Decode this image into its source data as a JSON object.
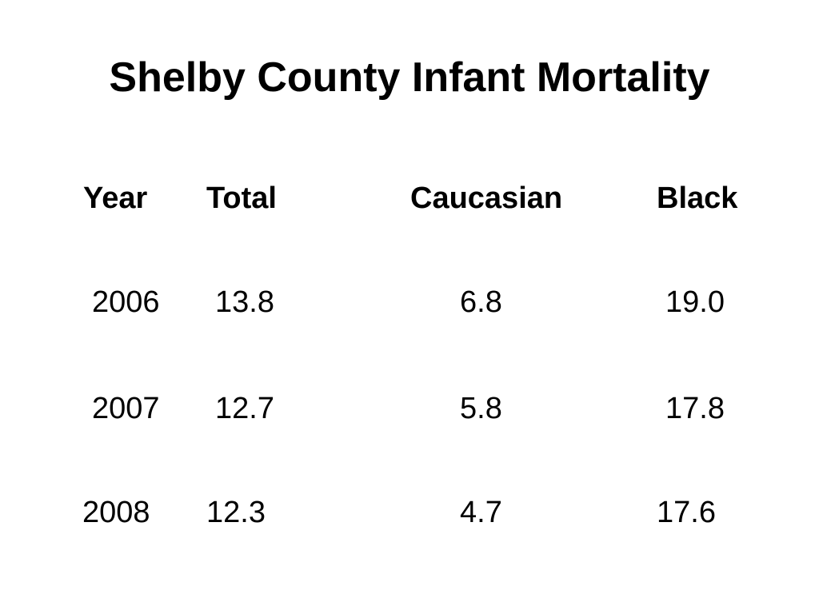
{
  "title": "Shelby County Infant Mortality",
  "headers": {
    "year": "Year",
    "total": "Total",
    "caucasian": "Caucasian",
    "black": "Black"
  },
  "rows": [
    {
      "year": "2006",
      "total": "13.8",
      "caucasian": "6.8",
      "black": "19.0"
    },
    {
      "year": "2007",
      "total": "12.7",
      "caucasian": "5.8",
      "black": "17.8"
    },
    {
      "year": "2008",
      "total": "12.3",
      "caucasian": "4.7",
      "black": "17.6"
    }
  ]
}
